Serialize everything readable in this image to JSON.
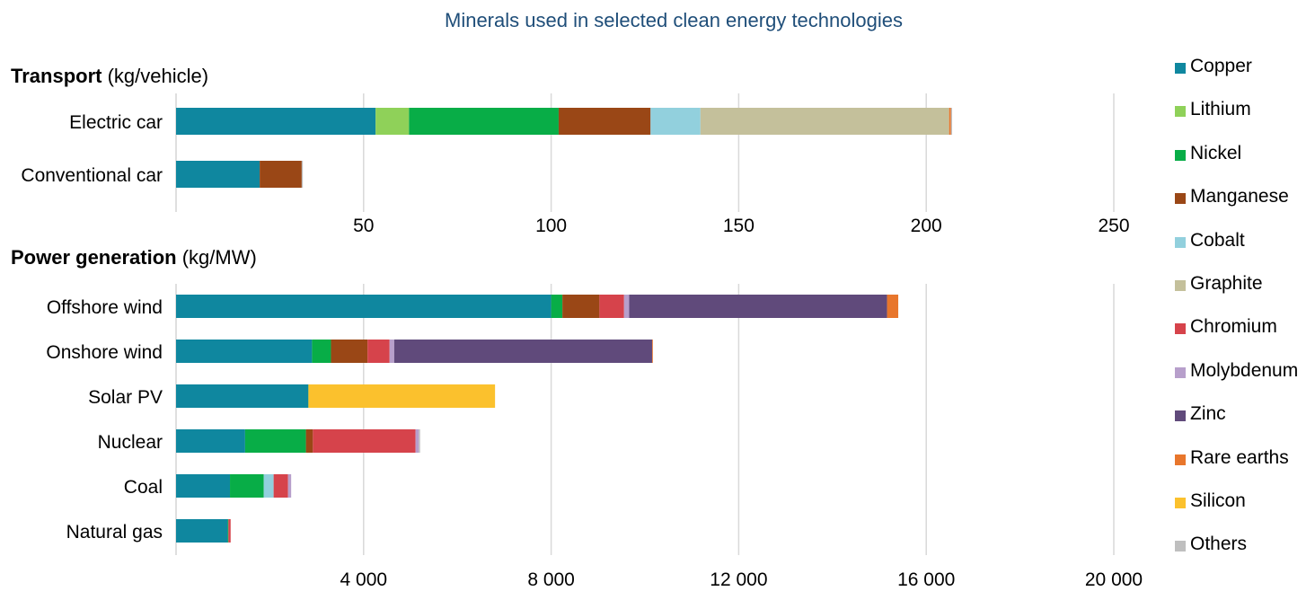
{
  "chart_data": [
    {
      "type": "bar",
      "orientation": "horizontal",
      "stacked": true,
      "title": "Minerals used in selected clean energy technologies",
      "panel_title": "Transport",
      "unit": "(kg/vehicle)",
      "categories": [
        "Electric car",
        "Conventional car"
      ],
      "xlim": [
        0,
        250
      ],
      "xticks": [
        50,
        100,
        150,
        200,
        250
      ],
      "xtick_labels": [
        "50",
        "100",
        "150",
        "200",
        "250"
      ],
      "grid": true,
      "series": [
        {
          "name": "Copper",
          "values": [
            53.2,
            22.3
          ]
        },
        {
          "name": "Lithium",
          "values": [
            8.9,
            0
          ]
        },
        {
          "name": "Nickel",
          "values": [
            39.9,
            0
          ]
        },
        {
          "name": "Manganese",
          "values": [
            24.5,
            11.2
          ]
        },
        {
          "name": "Cobalt",
          "values": [
            13.3,
            0
          ]
        },
        {
          "name": "Graphite",
          "values": [
            66.3,
            0
          ]
        },
        {
          "name": "Chromium",
          "values": [
            0,
            0
          ]
        },
        {
          "name": "Molybdenum",
          "values": [
            0,
            0
          ]
        },
        {
          "name": "Zinc",
          "values": [
            0,
            0
          ]
        },
        {
          "name": "Rare earths",
          "values": [
            0.5,
            0
          ]
        },
        {
          "name": "Silicon",
          "values": [
            0,
            0
          ]
        },
        {
          "name": "Others",
          "values": [
            0.3,
            0.3
          ]
        }
      ]
    },
    {
      "type": "bar",
      "orientation": "horizontal",
      "stacked": true,
      "panel_title": "Power generation",
      "unit": "(kg/MW)",
      "categories": [
        "Offshore wind",
        "Onshore wind",
        "Solar PV",
        "Nuclear",
        "Coal",
        "Natural gas"
      ],
      "xlim": [
        0,
        20000
      ],
      "xticks": [
        4000,
        8000,
        12000,
        16000,
        20000
      ],
      "xtick_labels": [
        "4 000",
        "8 000",
        "12 000",
        "16 000",
        "20 000"
      ],
      "grid": true,
      "series": [
        {
          "name": "Copper",
          "values": [
            8000,
            2900,
            2822,
            1473,
            1150,
            1100
          ]
        },
        {
          "name": "Lithium",
          "values": [
            0,
            0,
            0,
            0,
            0,
            0
          ]
        },
        {
          "name": "Nickel",
          "values": [
            240,
            404,
            1.3,
            1297,
            721,
            16
          ]
        },
        {
          "name": "Manganese",
          "values": [
            790,
            780,
            0,
            148,
            0,
            0
          ]
        },
        {
          "name": "Cobalt",
          "values": [
            0,
            0,
            0,
            0,
            210,
            0
          ]
        },
        {
          "name": "Graphite",
          "values": [
            0,
            0,
            0,
            0,
            0,
            0
          ]
        },
        {
          "name": "Chromium",
          "values": [
            525,
            470,
            0,
            2190,
            308,
            48
          ]
        },
        {
          "name": "Molybdenum",
          "values": [
            109,
            99,
            0,
            70,
            66,
            0
          ]
        },
        {
          "name": "Zinc",
          "values": [
            5500,
            5500,
            0,
            0,
            0,
            0
          ]
        },
        {
          "name": "Rare earths",
          "values": [
            239,
            14,
            0,
            0,
            0,
            0
          ]
        },
        {
          "name": "Silicon",
          "values": [
            0,
            0,
            3980,
            0,
            0,
            0
          ]
        },
        {
          "name": "Others",
          "values": [
            0,
            0,
            0,
            27,
            0,
            0
          ]
        }
      ]
    }
  ],
  "colors": {
    "Copper": "#0f879f",
    "Lithium": "#8fd159",
    "Nickel": "#08ad47",
    "Manganese": "#9a4716",
    "Cobalt": "#92d0dd",
    "Graphite": "#c4c09b",
    "Chromium": "#d6434b",
    "Molybdenum": "#b79fcb",
    "Zinc": "#604a7b",
    "Rare earths": "#e8762c",
    "Silicon": "#fbc12d",
    "Others": "#bfbfbf"
  },
  "legend": [
    "Copper",
    "Lithium",
    "Nickel",
    "Manganese",
    "Cobalt",
    "Graphite",
    "Chromium",
    "Molybdenum",
    "Zinc",
    "Rare earths",
    "Silicon",
    "Others"
  ],
  "title": "Minerals used in selected clean energy technologies",
  "transport_heading": "Transport",
  "transport_unit": "(kg/vehicle)",
  "power_heading": "Power generation",
  "power_unit": "(kg/MW)"
}
